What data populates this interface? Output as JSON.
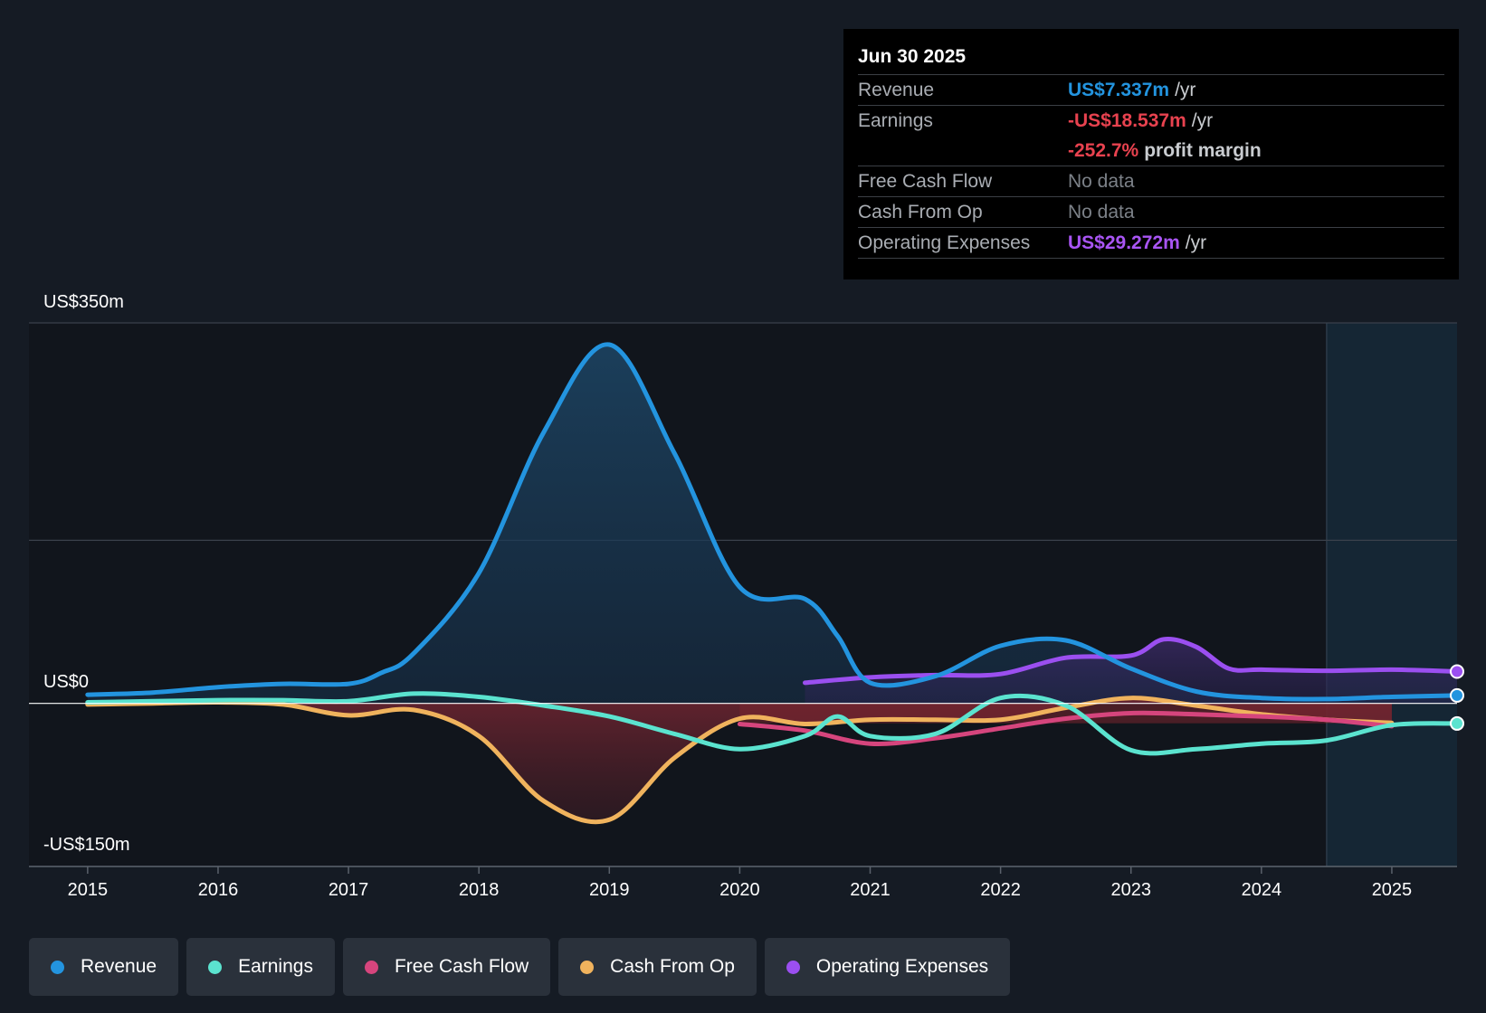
{
  "tooltip": {
    "date": "Jun 30 2025",
    "revenue_label": "Revenue",
    "revenue_value": "US$7.337m",
    "earnings_label": "Earnings",
    "earnings_value": "-US$18.537m",
    "margin_value": "-252.7%",
    "margin_text": "profit margin",
    "fcf_label": "Free Cash Flow",
    "fcf_value": "No data",
    "cfo_label": "Cash From Op",
    "cfo_value": "No data",
    "opex_label": "Operating Expenses",
    "opex_value": "US$29.272m",
    "unit": "/yr"
  },
  "legend": [
    {
      "label": "Revenue",
      "color": "#2394df"
    },
    {
      "label": "Earnings",
      "color": "#5be3cf"
    },
    {
      "label": "Free Cash Flow",
      "color": "#d6457d"
    },
    {
      "label": "Cash From Op",
      "color": "#f0b35d"
    },
    {
      "label": "Operating Expenses",
      "color": "#9b4ff0"
    }
  ],
  "colors": {
    "revenue": "#2394df",
    "earnings": "#5be3cf",
    "fcf": "#d6457d",
    "cfo": "#f0b35d",
    "opex": "#9b4ff0",
    "negative_fill": "#e0414b",
    "grid": "#3a414b"
  },
  "chart_data": {
    "type": "line",
    "title": "",
    "xlabel": "",
    "ylabel": "",
    "ylim": [
      -150,
      350
    ],
    "xlim": [
      2014.55,
      2025.5
    ],
    "y_tick_labels": [
      "US$350m",
      "US$0",
      "-US$150m"
    ],
    "x_tick_labels": [
      "2015",
      "2016",
      "2017",
      "2018",
      "2019",
      "2020",
      "2021",
      "2022",
      "2023",
      "2024",
      "2025"
    ],
    "forecast_start": 2024.5,
    "series": [
      {
        "name": "Revenue",
        "key": "revenue",
        "fill": true,
        "x": [
          2015,
          2015.5,
          2016,
          2016.5,
          2017,
          2017.25,
          2017.5,
          2018,
          2018.5,
          2019,
          2019.5,
          2020,
          2020.5,
          2020.75,
          2021,
          2021.5,
          2022,
          2022.5,
          2023,
          2023.5,
          2024,
          2024.5,
          2025,
          2025.5
        ],
        "values": [
          8,
          10,
          15,
          18,
          18,
          28,
          46,
          120,
          250,
          330,
          230,
          107,
          96,
          62,
          19,
          25,
          53,
          58,
          32,
          11,
          5,
          4,
          6,
          7.3
        ]
      },
      {
        "name": "Earnings",
        "key": "earnings",
        "fill": false,
        "x": [
          2015,
          2015.5,
          2016,
          2016.5,
          2017,
          2017.5,
          2018,
          2018.5,
          2019,
          2019.5,
          2020,
          2020.5,
          2020.75,
          2021,
          2021.5,
          2022,
          2022.5,
          2023,
          2023.5,
          2024,
          2024.5,
          2025,
          2025.5
        ],
        "values": [
          1,
          2,
          3,
          3,
          2,
          9,
          6,
          -2,
          -12,
          -28,
          -42,
          -30,
          -12,
          -30,
          -28,
          5,
          -2,
          -43,
          -42,
          -37,
          -34,
          -20,
          -18.5
        ]
      },
      {
        "name": "Free Cash Flow",
        "key": "fcf",
        "fill": false,
        "x": [
          2020,
          2020.5,
          2021,
          2021.5,
          2022,
          2022.5,
          2023,
          2023.5,
          2024,
          2024.5,
          2025
        ],
        "values": [
          -19,
          -25,
          -37,
          -32,
          -23,
          -14,
          -9,
          -10,
          -12,
          -15,
          -21
        ]
      },
      {
        "name": "Cash From Op",
        "key": "cfo",
        "fill": false,
        "x": [
          2015,
          2015.5,
          2016,
          2016.5,
          2017,
          2017.5,
          2018,
          2018.5,
          2019,
          2019.5,
          2020,
          2020.5,
          2021,
          2021.5,
          2022,
          2022.5,
          2023,
          2023.5,
          2024,
          2024.5,
          2025
        ],
        "values": [
          -1,
          0,
          1,
          -1,
          -11,
          -6,
          -30,
          -90,
          -107,
          -50,
          -14,
          -19,
          -15,
          -15,
          -15,
          -4,
          5,
          -2,
          -10,
          -15,
          -18
        ]
      },
      {
        "name": "Operating Expenses",
        "key": "opex",
        "fill": true,
        "x": [
          2020.5,
          2021,
          2021.5,
          2022,
          2022.5,
          2023,
          2023.25,
          2023.5,
          2023.75,
          2024,
          2024.5,
          2025,
          2025.5
        ],
        "values": [
          19,
          24,
          26,
          27,
          42,
          44,
          59,
          52,
          32,
          31,
          30,
          31,
          29.3
        ]
      }
    ]
  }
}
